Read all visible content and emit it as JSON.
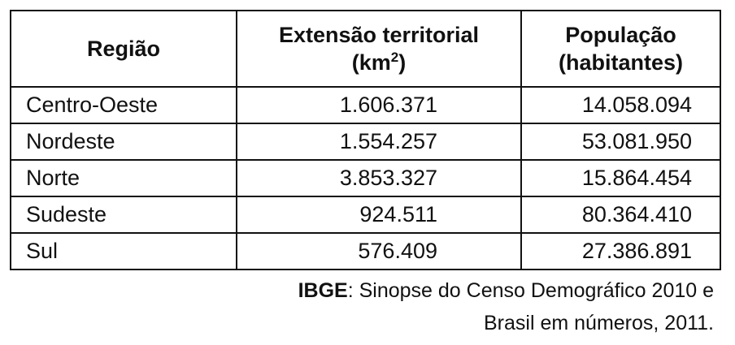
{
  "table": {
    "header": {
      "col1": "Região",
      "col2": {
        "line1": "Extensão territorial",
        "line2_before": "(km",
        "line2_sup": "2",
        "line2_after": ")"
      },
      "col3": {
        "line1": "População",
        "line2": "(habitantes)"
      }
    },
    "rows": [
      [
        "Centro-Oeste",
        "1.606.371",
        "14.058.094"
      ],
      [
        "Nordeste",
        "1.554.257",
        "53.081.950"
      ],
      [
        "Norte",
        "3.853.327",
        "15.864.454"
      ],
      [
        "Sudeste",
        "924.511",
        "80.364.410"
      ],
      [
        "Sul",
        "576.409",
        "27.386.891"
      ]
    ]
  },
  "source": {
    "bold": "IBGE",
    "line1": ": Sinopse do Censo Demográfico 2010 e",
    "line2": "Brasil em números, 2011."
  }
}
